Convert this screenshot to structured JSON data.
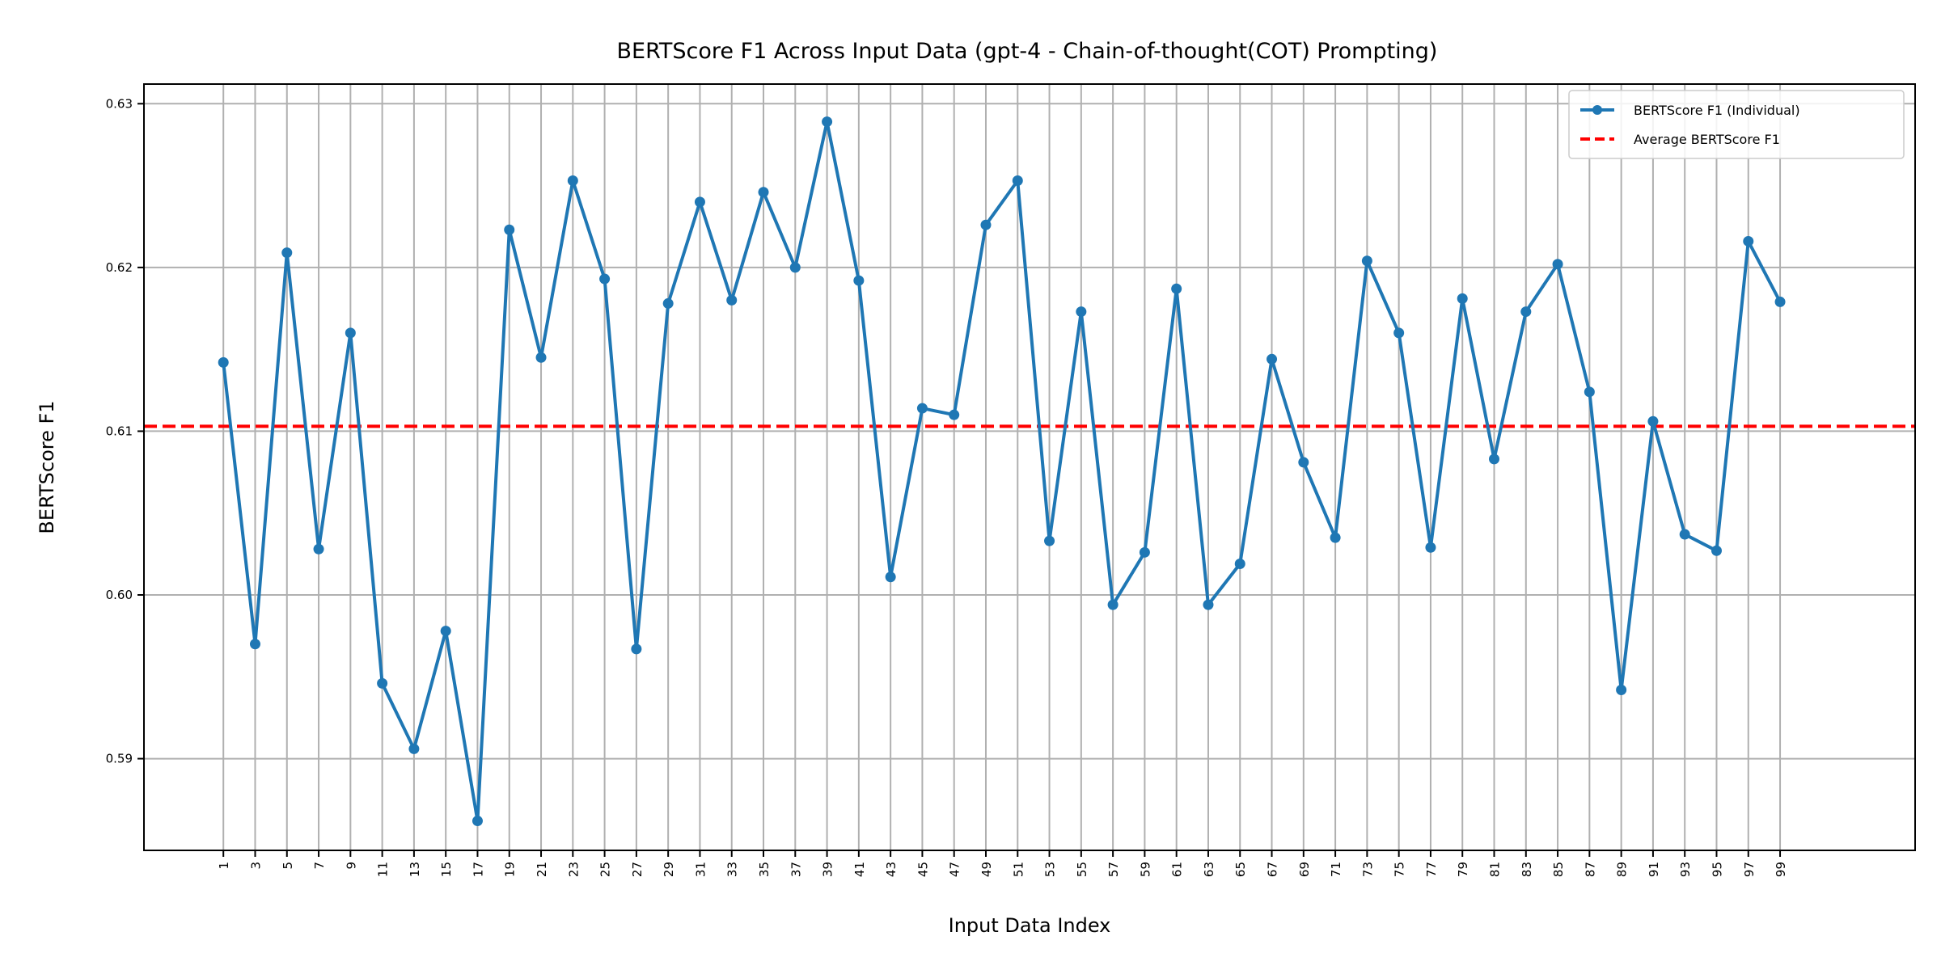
{
  "chart_data": {
    "type": "line",
    "title": "BERTScore F1 Across Input Data (gpt-4 - Chain-of-thought(COT) Prompting)",
    "xlabel": "Input Data Index",
    "ylabel": "BERTScore F1",
    "x": [
      1,
      3,
      5,
      7,
      9,
      11,
      13,
      15,
      17,
      19,
      21,
      23,
      25,
      27,
      29,
      31,
      33,
      35,
      37,
      39,
      41,
      43,
      45,
      47,
      49,
      51,
      53,
      55,
      57,
      59,
      61,
      63,
      65,
      67,
      69,
      71,
      73,
      75,
      77,
      79,
      81,
      83,
      85,
      87,
      89,
      91,
      93,
      95,
      97,
      99
    ],
    "series": [
      {
        "name": "BERTScore F1 (Individual)",
        "color": "#1f77b4",
        "values": [
          0.6142,
          0.597,
          0.6209,
          0.6028,
          0.616,
          0.5946,
          0.5906,
          0.5978,
          0.5862,
          0.6223,
          0.6145,
          0.6253,
          0.6193,
          0.5967,
          0.6178,
          0.624,
          0.618,
          0.6246,
          0.62,
          0.6289,
          0.6192,
          0.6011,
          0.6114,
          0.611,
          0.6226,
          0.6253,
          0.6033,
          0.6173,
          0.5994,
          0.6026,
          0.6187,
          0.5994,
          0.6019,
          0.6144,
          0.6081,
          0.6035,
          0.6204,
          0.616,
          0.6029,
          0.6181,
          0.6083,
          0.6173,
          0.6202,
          0.6124,
          0.5942,
          0.6106,
          0.6037,
          0.6027,
          0.6216,
          0.6179
        ]
      }
    ],
    "average": {
      "name": "Average BERTScore F1",
      "value": 0.6103,
      "color": "#ff0000"
    },
    "xticks": [
      "1",
      "3",
      "5",
      "7",
      "9",
      "11",
      "13",
      "15",
      "17",
      "19",
      "21",
      "23",
      "25",
      "27",
      "29",
      "31",
      "33",
      "35",
      "37",
      "39",
      "41",
      "43",
      "45",
      "47",
      "49",
      "51",
      "53",
      "55",
      "57",
      "59",
      "61",
      "63",
      "65",
      "67",
      "69",
      "71",
      "73",
      "75",
      "77",
      "79",
      "81",
      "83",
      "85",
      "87",
      "89",
      "91",
      "93",
      "95",
      "97",
      "99"
    ],
    "yticks": [
      0.59,
      0.6,
      0.61,
      0.62,
      0.63
    ],
    "ytick_labels": [
      "0.59",
      "0.60",
      "0.61",
      "0.62",
      "0.63"
    ],
    "xlim": [
      -4,
      107.5
    ],
    "ylim": [
      0.5844,
      0.6312
    ],
    "grid": true,
    "legend_position": "top-right"
  }
}
